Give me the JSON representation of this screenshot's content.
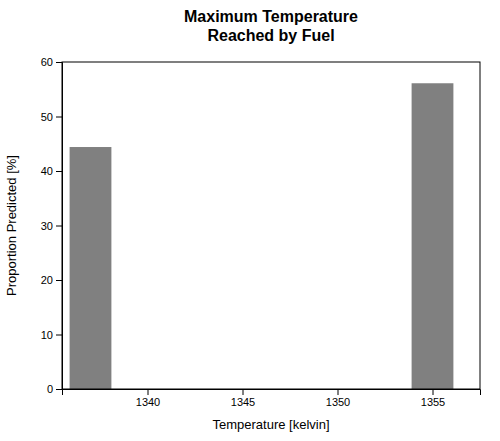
{
  "chart_data": {
    "type": "bar",
    "title": "Maximum Temperature\nReached by Fuel",
    "x_label": "Temperature [kelvin]",
    "y_label": "Proportion Predicted [%]",
    "x": [
      1337,
      1355
    ],
    "values": [
      44.4,
      56.1
    ],
    "color": "#808080",
    "xlim": [
      1335.5,
      1357.5
    ],
    "xticks": [
      1340,
      1345,
      1350,
      1355
    ],
    "ylim": [
      0,
      60
    ],
    "yticks": [
      0,
      10,
      20,
      30,
      40,
      50,
      60
    ],
    "grid": false
  }
}
